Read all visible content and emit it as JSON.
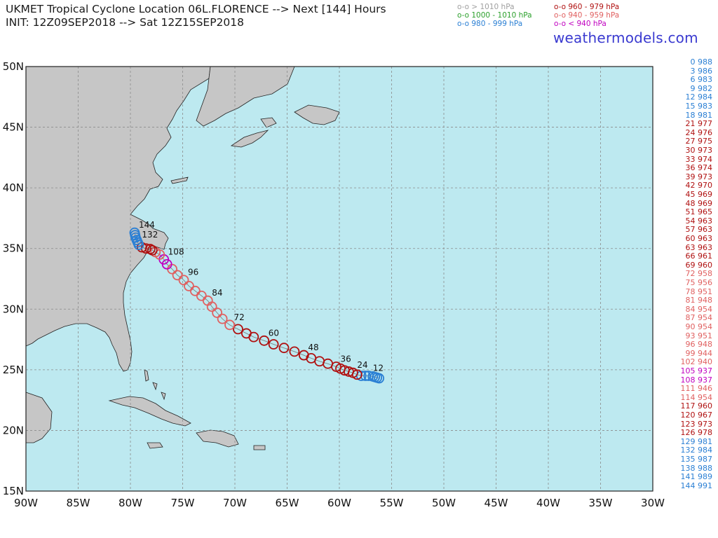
{
  "header": {
    "title_line1": "UKMET Tropical Cyclone Location 06L.FLORENCE --> Next [144] Hours",
    "title_line2": "INIT: 12Z09SEP2018 --> Sat 12Z15SEP2018",
    "brand": "weathermodels.com"
  },
  "legend": [
    {
      "text": "o-o > 1010 hPa",
      "color": "#a0a0a0"
    },
    {
      "text": "o-o 1000 - 1010 hPa",
      "color": "#2ca02c"
    },
    {
      "text": "o-o 980 - 999 hPa",
      "color": "#2a7fd4"
    },
    {
      "text": "o-o 960 - 979 hPa",
      "color": "#b01010"
    },
    {
      "text": "o-o 940 - 959 hPa",
      "color": "#e06060"
    },
    {
      "text": "o-o < 940 hPa",
      "color": "#c000c0"
    }
  ],
  "colors": {
    "ocean": "#bde9f0",
    "land": "#c6c6c6",
    "grid": "#8a8a8a",
    "c980": "#2a7fd4",
    "c960": "#b01010",
    "c940": "#e06060",
    "c_lt940": "#c000c0"
  },
  "map": {
    "lon_range": [
      -90,
      -30
    ],
    "lat_range": [
      15,
      50
    ],
    "lon_labels": [
      "90W",
      "85W",
      "80W",
      "75W",
      "70W",
      "65W",
      "60W",
      "55W",
      "50W",
      "45W",
      "40W",
      "35W",
      "30W"
    ],
    "lat_labels": [
      "15N",
      "20N",
      "25N",
      "30N",
      "35N",
      "40N",
      "45N",
      "50N"
    ]
  },
  "chart_data": {
    "type": "scatter",
    "title": "UKMET Tropical Cyclone Location 06L.FLORENCE --> Next [144] Hours",
    "xlim": [
      -90,
      -30
    ],
    "ylim": [
      15,
      50
    ],
    "hour_labels_shown": [
      "12",
      "24",
      "36",
      "48",
      "60",
      "72",
      "84",
      "96",
      "108",
      "132",
      "144"
    ],
    "track": [
      {
        "hour": 0,
        "lon": -56.2,
        "lat": 24.3,
        "mslp": 988
      },
      {
        "hour": 3,
        "lon": -56.4,
        "lat": 24.35,
        "mslp": 986
      },
      {
        "hour": 6,
        "lon": -56.6,
        "lat": 24.4,
        "mslp": 983
      },
      {
        "hour": 9,
        "lon": -56.8,
        "lat": 24.45,
        "mslp": 982
      },
      {
        "hour": 12,
        "lon": -57.2,
        "lat": 24.5,
        "mslp": 984
      },
      {
        "hour": 15,
        "lon": -57.5,
        "lat": 24.5,
        "mslp": 983
      },
      {
        "hour": 18,
        "lon": -57.9,
        "lat": 24.5,
        "mslp": 981
      },
      {
        "hour": 21,
        "lon": -58.3,
        "lat": 24.6,
        "mslp": 977
      },
      {
        "hour": 24,
        "lon": -58.7,
        "lat": 24.75,
        "mslp": 976
      },
      {
        "hour": 27,
        "lon": -59.1,
        "lat": 24.85,
        "mslp": 975
      },
      {
        "hour": 30,
        "lon": -59.5,
        "lat": 24.95,
        "mslp": 973
      },
      {
        "hour": 33,
        "lon": -59.9,
        "lat": 25.1,
        "mslp": 974
      },
      {
        "hour": 36,
        "lon": -60.3,
        "lat": 25.25,
        "mslp": 974
      },
      {
        "hour": 39,
        "lon": -61.1,
        "lat": 25.5,
        "mslp": 973
      },
      {
        "hour": 42,
        "lon": -61.9,
        "lat": 25.7,
        "mslp": 970
      },
      {
        "hour": 45,
        "lon": -62.7,
        "lat": 25.95,
        "mslp": 969
      },
      {
        "hour": 48,
        "lon": -63.4,
        "lat": 26.2,
        "mslp": 969
      },
      {
        "hour": 51,
        "lon": -64.3,
        "lat": 26.5,
        "mslp": 965
      },
      {
        "hour": 54,
        "lon": -65.3,
        "lat": 26.8,
        "mslp": 963
      },
      {
        "hour": 57,
        "lon": -66.3,
        "lat": 27.1,
        "mslp": 963
      },
      {
        "hour": 60,
        "lon": -67.2,
        "lat": 27.4,
        "mslp": 963
      },
      {
        "hour": 63,
        "lon": -68.2,
        "lat": 27.7,
        "mslp": 963
      },
      {
        "hour": 66,
        "lon": -68.9,
        "lat": 28.0,
        "mslp": 961
      },
      {
        "hour": 69,
        "lon": -69.7,
        "lat": 28.35,
        "mslp": 960
      },
      {
        "hour": 72,
        "lon": -70.5,
        "lat": 28.7,
        "mslp": 958
      },
      {
        "hour": 75,
        "lon": -71.2,
        "lat": 29.2,
        "mslp": 956
      },
      {
        "hour": 78,
        "lon": -71.7,
        "lat": 29.7,
        "mslp": 951
      },
      {
        "hour": 81,
        "lon": -72.2,
        "lat": 30.2,
        "mslp": 948
      },
      {
        "hour": 84,
        "lon": -72.6,
        "lat": 30.7,
        "mslp": 954
      },
      {
        "hour": 87,
        "lon": -73.2,
        "lat": 31.1,
        "mslp": 954
      },
      {
        "hour": 90,
        "lon": -73.8,
        "lat": 31.5,
        "mslp": 954
      },
      {
        "hour": 93,
        "lon": -74.4,
        "lat": 31.9,
        "mslp": 951
      },
      {
        "hour": 96,
        "lon": -74.9,
        "lat": 32.4,
        "mslp": 948
      },
      {
        "hour": 99,
        "lon": -75.5,
        "lat": 32.8,
        "mslp": 944
      },
      {
        "hour": 102,
        "lon": -76.0,
        "lat": 33.3,
        "mslp": 940
      },
      {
        "hour": 105,
        "lon": -76.5,
        "lat": 33.7,
        "mslp": 937
      },
      {
        "hour": 108,
        "lon": -76.8,
        "lat": 34.1,
        "mslp": 937
      },
      {
        "hour": 111,
        "lon": -77.2,
        "lat": 34.5,
        "mslp": 946
      },
      {
        "hour": 114,
        "lon": -77.6,
        "lat": 34.7,
        "mslp": 954
      },
      {
        "hour": 117,
        "lon": -77.9,
        "lat": 34.85,
        "mslp": 960
      },
      {
        "hour": 120,
        "lon": -78.1,
        "lat": 34.95,
        "mslp": 967
      },
      {
        "hour": 123,
        "lon": -78.5,
        "lat": 35.0,
        "mslp": 973
      },
      {
        "hour": 126,
        "lon": -78.9,
        "lat": 35.1,
        "mslp": 978
      },
      {
        "hour": 129,
        "lon": -79.2,
        "lat": 35.3,
        "mslp": 981
      },
      {
        "hour": 132,
        "lon": -79.3,
        "lat": 35.5,
        "mslp": 984
      },
      {
        "hour": 135,
        "lon": -79.4,
        "lat": 35.7,
        "mslp": 987
      },
      {
        "hour": 138,
        "lon": -79.5,
        "lat": 35.9,
        "mslp": 988
      },
      {
        "hour": 141,
        "lon": -79.55,
        "lat": 36.1,
        "mslp": 989
      },
      {
        "hour": 144,
        "lon": -79.6,
        "lat": 36.3,
        "mslp": 991
      }
    ]
  }
}
